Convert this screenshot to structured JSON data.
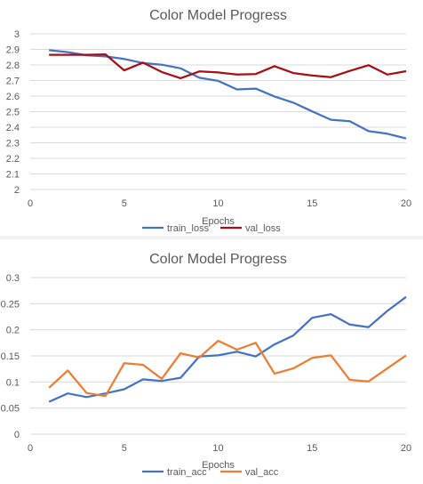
{
  "chart_data": [
    {
      "type": "line",
      "title": "Color Model Progress",
      "xlabel": "Epochs",
      "ylabel": "",
      "xlim": [
        0,
        20
      ],
      "ylim": [
        2,
        3
      ],
      "xticks": [
        0,
        5,
        10,
        15,
        20
      ],
      "yticks": [
        2,
        2.1,
        2.2,
        2.3,
        2.4,
        2.5,
        2.6,
        2.7,
        2.8,
        2.9,
        3
      ],
      "grid": true,
      "legend_position": "bottom",
      "x": [
        1,
        2,
        3,
        4,
        5,
        6,
        7,
        8,
        9,
        10,
        11,
        12,
        13,
        14,
        15,
        16,
        17,
        18,
        19,
        20
      ],
      "series": [
        {
          "name": "train_loss",
          "color": "#4472c4",
          "values": [
            2.895,
            2.882,
            2.862,
            2.855,
            2.838,
            2.812,
            2.802,
            2.778,
            2.718,
            2.698,
            2.643,
            2.648,
            2.598,
            2.558,
            2.502,
            2.448,
            2.438,
            2.375,
            2.358,
            2.328
          ]
        },
        {
          "name": "val_loss",
          "color": "#a50f15",
          "values": [
            2.865,
            2.865,
            2.865,
            2.868,
            2.765,
            2.815,
            2.755,
            2.715,
            2.758,
            2.752,
            2.738,
            2.742,
            2.792,
            2.748,
            2.732,
            2.722,
            2.762,
            2.798,
            2.738,
            2.76
          ]
        }
      ]
    },
    {
      "type": "line",
      "title": "Color Model Progress",
      "xlabel": "Epochs",
      "ylabel": "",
      "xlim": [
        0,
        20
      ],
      "ylim": [
        0,
        0.3
      ],
      "xticks": [
        0,
        5,
        10,
        15,
        20
      ],
      "yticks": [
        0,
        0.05,
        0.1,
        0.15,
        0.2,
        0.25,
        0.3
      ],
      "grid": true,
      "legend_position": "bottom",
      "x": [
        1,
        2,
        3,
        4,
        5,
        6,
        7,
        8,
        9,
        10,
        11,
        12,
        13,
        14,
        15,
        16,
        17,
        18,
        19,
        20
      ],
      "series": [
        {
          "name": "train_acc",
          "color": "#4472c4",
          "values": [
            0.062,
            0.078,
            0.071,
            0.078,
            0.086,
            0.105,
            0.102,
            0.108,
            0.149,
            0.151,
            0.158,
            0.149,
            0.172,
            0.189,
            0.223,
            0.23,
            0.21,
            0.205,
            0.236,
            0.263
          ]
        },
        {
          "name": "val_acc",
          "color": "#ed7d31",
          "values": [
            0.089,
            0.122,
            0.079,
            0.073,
            0.136,
            0.133,
            0.106,
            0.155,
            0.147,
            0.179,
            0.162,
            0.175,
            0.116,
            0.126,
            0.146,
            0.151,
            0.104,
            0.101,
            0.126,
            0.151
          ]
        }
      ]
    }
  ]
}
